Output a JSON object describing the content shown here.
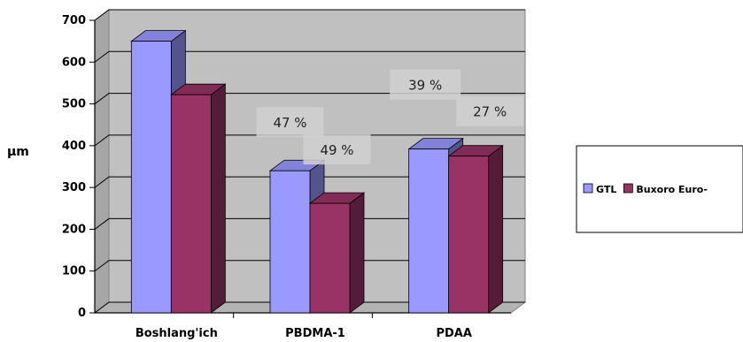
{
  "chart_data": {
    "type": "bar",
    "style": "3d-clustered-column",
    "ylabel": "µm",
    "xlabel": "",
    "ylim": [
      0,
      700
    ],
    "yticks": [
      0,
      100,
      200,
      300,
      400,
      500,
      600,
      700
    ],
    "categories": [
      "Boshlang'ich",
      "PBDMA-1",
      "PDAA"
    ],
    "series": [
      {
        "name": "GTL",
        "color": "#9999FF",
        "values": [
          650,
          340,
          392
        ]
      },
      {
        "name": "Buxoro Euro-",
        "color": "#993366",
        "values": [
          522,
          262,
          375
        ]
      }
    ],
    "annotations": [
      {
        "text": "47 %",
        "category": "PBDMA-1",
        "series": "GTL"
      },
      {
        "text": "49 %",
        "category": "PBDMA-1",
        "series": "Buxoro Euro-"
      },
      {
        "text": "39 %",
        "category": "PDAA",
        "series": "GTL"
      },
      {
        "text": "27 %",
        "category": "PDAA",
        "series": "Buxoro Euro-"
      }
    ],
    "grid": true,
    "legend_position": "right",
    "wall_color": "#C0C0C0"
  }
}
